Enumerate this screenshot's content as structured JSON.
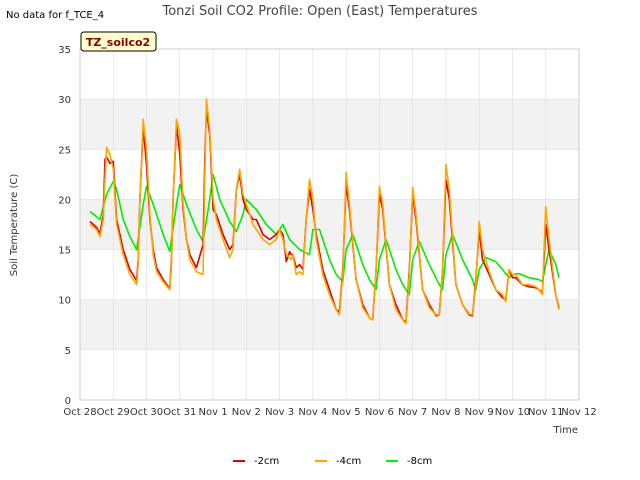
{
  "no_data_note": "No data for f_TCE_4",
  "badge": "TZ_soilco2",
  "colors": {
    "band": "#f2f2f2",
    "grid": "#dddddd",
    "badge_fill": "#ffffcc",
    "series": [
      "#dd0000",
      "#ffa500",
      "#00ee00"
    ]
  },
  "chart_data": {
    "type": "line",
    "title": "Tonzi Soil CO2 Profile: Open (East) Temperatures",
    "xlabel": "Time",
    "ylabel": "Soil Temperature (C)",
    "xlim": [
      0,
      15
    ],
    "ylim": [
      0,
      35
    ],
    "x_ticks": [
      {
        "x": 0,
        "label": "Oct 28"
      },
      {
        "x": 1,
        "label": "Oct 29"
      },
      {
        "x": 2,
        "label": "Oct 30"
      },
      {
        "x": 3,
        "label": "Oct 31"
      },
      {
        "x": 4,
        "label": "Nov 1"
      },
      {
        "x": 5,
        "label": "Nov 2"
      },
      {
        "x": 6,
        "label": "Nov 3"
      },
      {
        "x": 7,
        "label": "Nov 4"
      },
      {
        "x": 8,
        "label": "Nov 5"
      },
      {
        "x": 9,
        "label": "Nov 6"
      },
      {
        "x": 10,
        "label": "Nov 7"
      },
      {
        "x": 11,
        "label": "Nov 8"
      },
      {
        "x": 12,
        "label": "Nov 9"
      },
      {
        "x": 13,
        "label": "Nov 10"
      },
      {
        "x": 14,
        "label": "Nov 11"
      },
      {
        "x": 15,
        "label": "Nov 12"
      }
    ],
    "y_ticks": [
      0,
      5,
      10,
      15,
      20,
      25,
      30,
      35
    ],
    "grid": true,
    "legend_position": "bottom-center",
    "series": [
      {
        "name": "-2cm",
        "x": [
          0.3,
          0.5,
          0.6,
          0.7,
          0.75,
          0.8,
          0.9,
          1.0,
          1.1,
          1.3,
          1.5,
          1.7,
          1.75,
          1.8,
          1.9,
          2.0,
          2.1,
          2.2,
          2.3,
          2.5,
          2.7,
          2.75,
          2.8,
          2.9,
          3.0,
          3.1,
          3.2,
          3.3,
          3.5,
          3.7,
          3.75,
          3.8,
          3.9,
          4.0,
          4.1,
          4.2,
          4.3,
          4.5,
          4.6,
          4.7,
          4.8,
          4.9,
          5.0,
          5.1,
          5.2,
          5.3,
          5.5,
          5.7,
          5.9,
          6.0,
          6.1,
          6.2,
          6.3,
          6.35,
          6.4,
          6.5,
          6.6,
          6.7,
          6.8,
          6.9,
          7.0,
          7.1,
          7.3,
          7.5,
          7.7,
          7.8,
          7.9,
          8.0,
          8.1,
          8.3,
          8.5,
          8.7,
          8.8,
          8.9,
          9.0,
          9.1,
          9.3,
          9.5,
          9.7,
          9.8,
          9.9,
          10.0,
          10.1,
          10.3,
          10.5,
          10.7,
          10.8,
          10.9,
          11.0,
          11.1,
          11.3,
          11.5,
          11.7,
          11.8,
          11.9,
          12.0,
          12.1,
          12.3,
          12.5,
          12.7,
          12.8,
          12.9,
          13.0,
          13.1,
          13.3,
          13.5,
          13.7,
          13.8,
          13.9,
          14.0,
          14.1,
          14.3,
          14.4
        ],
        "y": [
          17.8,
          17.2,
          16.6,
          18.5,
          24.0,
          24.2,
          23.6,
          23.8,
          18.0,
          15.0,
          13.0,
          11.9,
          14.0,
          20.0,
          27.2,
          23.5,
          18.0,
          15.0,
          13.2,
          12.0,
          11.1,
          14.0,
          20.0,
          27.4,
          24.5,
          19.0,
          16.0,
          14.5,
          13.2,
          15.5,
          24.0,
          29.0,
          26.5,
          19.0,
          18.5,
          17.5,
          16.5,
          15.0,
          15.5,
          21.0,
          22.5,
          20.0,
          19.0,
          18.5,
          18.0,
          18.0,
          16.5,
          16.0,
          16.5,
          17.0,
          16.5,
          13.8,
          14.8,
          14.5,
          14.5,
          13.2,
          13.5,
          13.0,
          18.0,
          21.0,
          19.0,
          16.5,
          13.0,
          11.0,
          9.0,
          8.8,
          13.0,
          21.5,
          19.0,
          12.0,
          9.5,
          8.2,
          8.0,
          13.0,
          20.5,
          19.0,
          11.5,
          9.5,
          8.0,
          7.8,
          13.0,
          20.5,
          18.0,
          11.0,
          9.5,
          8.4,
          8.5,
          13.0,
          22.0,
          20.0,
          11.5,
          9.5,
          8.5,
          8.4,
          12.0,
          17.0,
          14.0,
          12.5,
          11.0,
          10.2,
          10.0,
          13.0,
          12.2,
          12.2,
          11.5,
          11.3,
          11.2,
          11.0,
          10.7,
          17.5,
          15.0,
          10.5,
          9.2
        ]
      },
      {
        "name": "-4cm",
        "x": [
          0.3,
          0.5,
          0.6,
          0.7,
          0.75,
          0.8,
          0.9,
          1.0,
          1.1,
          1.3,
          1.5,
          1.7,
          1.75,
          1.8,
          1.9,
          2.0,
          2.1,
          2.2,
          2.3,
          2.5,
          2.7,
          2.75,
          2.8,
          2.9,
          3.0,
          3.1,
          3.2,
          3.3,
          3.5,
          3.7,
          3.75,
          3.8,
          3.9,
          4.0,
          4.1,
          4.2,
          4.3,
          4.5,
          4.6,
          4.7,
          4.8,
          4.9,
          5.0,
          5.1,
          5.2,
          5.3,
          5.5,
          5.7,
          5.9,
          6.0,
          6.1,
          6.2,
          6.3,
          6.35,
          6.4,
          6.5,
          6.6,
          6.7,
          6.8,
          6.9,
          7.0,
          7.1,
          7.3,
          7.5,
          7.7,
          7.8,
          7.9,
          8.0,
          8.1,
          8.3,
          8.5,
          8.7,
          8.8,
          8.9,
          9.0,
          9.1,
          9.3,
          9.5,
          9.7,
          9.8,
          9.9,
          10.0,
          10.1,
          10.3,
          10.5,
          10.7,
          10.8,
          10.9,
          11.0,
          11.1,
          11.3,
          11.5,
          11.7,
          11.8,
          11.9,
          12.0,
          12.1,
          12.3,
          12.5,
          12.7,
          12.8,
          12.9,
          13.0,
          13.1,
          13.3,
          13.5,
          13.7,
          13.8,
          13.9,
          14.0,
          14.1,
          14.3,
          14.4
        ],
        "y": [
          17.5,
          17.0,
          16.3,
          18.0,
          22.0,
          25.2,
          24.5,
          23.0,
          17.5,
          14.5,
          12.5,
          11.5,
          13.5,
          20.0,
          28.0,
          25.0,
          18.5,
          14.5,
          12.8,
          11.8,
          11.0,
          13.5,
          20.0,
          28.0,
          26.5,
          19.5,
          16.0,
          14.0,
          12.8,
          12.5,
          22.0,
          30.0,
          27.0,
          20.0,
          18.0,
          17.0,
          16.0,
          14.2,
          15.0,
          21.0,
          23.0,
          20.5,
          19.5,
          18.5,
          17.5,
          17.0,
          16.0,
          15.5,
          16.0,
          17.0,
          16.0,
          14.5,
          14.2,
          14.0,
          14.5,
          12.5,
          12.8,
          12.5,
          18.0,
          22.0,
          20.0,
          16.0,
          12.5,
          10.5,
          9.0,
          8.5,
          12.5,
          22.7,
          19.5,
          12.0,
          9.2,
          8.2,
          8.0,
          13.0,
          21.3,
          19.5,
          11.5,
          9.0,
          8.0,
          7.6,
          12.5,
          21.2,
          18.5,
          11.0,
          9.2,
          8.5,
          8.5,
          13.0,
          23.5,
          21.0,
          11.5,
          9.5,
          8.6,
          8.5,
          11.5,
          17.8,
          15.0,
          12.8,
          11.0,
          10.5,
          9.8,
          13.0,
          12.5,
          12.5,
          11.5,
          11.5,
          11.3,
          11.0,
          10.5,
          19.3,
          16.0,
          10.5,
          9.0
        ]
      },
      {
        "name": "-8cm",
        "x": [
          0.3,
          0.6,
          0.8,
          1.0,
          1.1,
          1.3,
          1.5,
          1.7,
          1.9,
          2.0,
          2.2,
          2.5,
          2.7,
          2.9,
          3.0,
          3.2,
          3.5,
          3.7,
          3.9,
          4.0,
          4.2,
          4.5,
          4.7,
          4.9,
          5.0,
          5.3,
          5.6,
          5.9,
          6.0,
          6.1,
          6.3,
          6.6,
          6.9,
          7.0,
          7.2,
          7.5,
          7.7,
          7.9,
          8.0,
          8.2,
          8.5,
          8.7,
          8.9,
          9.0,
          9.2,
          9.5,
          9.7,
          9.9,
          10.0,
          10.2,
          10.5,
          10.8,
          10.9,
          11.0,
          11.2,
          11.5,
          11.8,
          11.9,
          12.0,
          12.2,
          12.5,
          12.7,
          12.9,
          13.0,
          13.2,
          13.5,
          13.8,
          13.9,
          14.0,
          14.1,
          14.3,
          14.4
        ],
        "y": [
          18.8,
          18.0,
          20.5,
          21.8,
          21.0,
          18.0,
          16.3,
          15.0,
          19.5,
          21.3,
          19.5,
          16.5,
          14.8,
          19.5,
          21.5,
          19.5,
          17.0,
          15.8,
          20.0,
          22.5,
          20.0,
          17.8,
          16.8,
          18.5,
          20.0,
          19.0,
          17.5,
          16.5,
          17.0,
          17.5,
          16.0,
          15.0,
          14.5,
          17.0,
          17.0,
          14.0,
          12.5,
          11.8,
          15.0,
          16.5,
          13.5,
          12.0,
          11.0,
          14.0,
          16.0,
          13.0,
          11.5,
          10.5,
          14.0,
          15.8,
          13.5,
          11.5,
          11.0,
          14.5,
          16.5,
          14.0,
          12.0,
          11.0,
          13.0,
          14.2,
          13.8,
          13.0,
          12.2,
          12.5,
          12.6,
          12.2,
          12.0,
          11.8,
          13.5,
          15.0,
          13.5,
          12.2
        ]
      }
    ]
  }
}
